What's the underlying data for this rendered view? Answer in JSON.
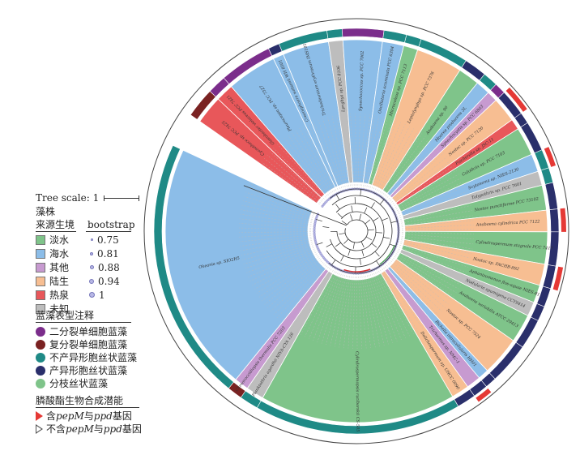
{
  "scale": {
    "label": "Tree scale: 1"
  },
  "strain_source": {
    "title_line1": "藻株",
    "title_line2": "来源生境",
    "items": [
      {
        "label": "淡水",
        "color": "#7fc48a"
      },
      {
        "label": "海水",
        "color": "#8cbde8"
      },
      {
        "label": "其他",
        "color": "#c79ad0"
      },
      {
        "label": "陆生",
        "color": "#f7be92"
      },
      {
        "label": "热泉",
        "color": "#e8575a"
      },
      {
        "label": "未知",
        "color": "#bdbdbd"
      }
    ]
  },
  "bootstrap": {
    "title": "bootstrap",
    "items": [
      {
        "label": "0.75"
      },
      {
        "label": "0.81"
      },
      {
        "label": "0.88"
      },
      {
        "label": "0.94"
      },
      {
        "label": "1"
      }
    ]
  },
  "phenotype": {
    "title": "蓝藻表型注释",
    "items": [
      {
        "label": "二分裂单细胞蓝藻",
        "color": "#7b2d8b"
      },
      {
        "label": "复分裂单细胞蓝藻",
        "color": "#7a2222"
      },
      {
        "label": "不产异形胞丝状蓝藻",
        "color": "#1f8a86"
      },
      {
        "label": "产异形胞丝状蓝藻",
        "color": "#2a2f6b"
      },
      {
        "label": "分枝丝状蓝藻",
        "color": "#7fc48a"
      }
    ]
  },
  "gene_potential": {
    "title": "膦酸酯生物合成潜能",
    "items": [
      {
        "prefix": "含",
        "gene1": "pepM",
        "middle": "与",
        "gene2": "ppd",
        "suffix": "基因",
        "color": "#e53935",
        "filled": true
      },
      {
        "prefix": "不含",
        "gene1": "pepM",
        "middle": "与",
        "gene2": "ppd",
        "suffix": "基因",
        "color": "#555555",
        "filled": false
      }
    ]
  },
  "tree": {
    "sectors": [
      {
        "source": "热泉",
        "phenotype": "复分裂单细胞蓝藻",
        "gene": false
      },
      {
        "source": "热泉",
        "phenotype": "二分裂单细胞蓝藻",
        "gene": false
      },
      {
        "source": "海水",
        "phenotype": "二分裂单细胞蓝藻",
        "gene": false
      },
      {
        "source": "海水",
        "phenotype": "产异形胞丝状蓝藻",
        "gene": false
      },
      {
        "source": "海水",
        "phenotype": "不产异形胞丝状蓝藻",
        "gene": false
      },
      {
        "source": "未知",
        "phenotype": "不产异形胞丝状蓝藻",
        "gene": false
      },
      {
        "source": "海水",
        "phenotype": "二分裂单细胞蓝藻",
        "gene": false
      },
      {
        "source": "海水",
        "phenotype": "不产异形胞丝状蓝藻",
        "gene": false
      },
      {
        "source": "淡水",
        "phenotype": "不产异形胞丝状蓝藻",
        "gene": false
      },
      {
        "source": "陆生",
        "phenotype": "不产异形胞丝状蓝藻",
        "gene": false
      },
      {
        "source": "淡水",
        "phenotype": "产异形胞丝状蓝藻",
        "gene": false
      },
      {
        "source": "海水",
        "phenotype": "不产异形胞丝状蓝藻",
        "gene": false
      },
      {
        "source": "其他",
        "phenotype": "二分裂单细胞蓝藻",
        "gene": false
      },
      {
        "source": "陆生",
        "phenotype": "产异形胞丝状蓝藻",
        "gene": true
      },
      {
        "source": "热泉",
        "phenotype": "产异形胞丝状蓝藻",
        "gene": false
      },
      {
        "source": "淡水",
        "phenotype": "产异形胞丝状蓝藻",
        "gene": false
      },
      {
        "source": "海水",
        "phenotype": "不产异形胞丝状蓝藻",
        "gene": true
      },
      {
        "source": "未知",
        "phenotype": "不产异形胞丝状蓝藻",
        "gene": false
      },
      {
        "source": "淡水",
        "phenotype": "产异形胞丝状蓝藻",
        "gene": false
      },
      {
        "source": "陆生",
        "phenotype": "产异形胞丝状蓝藻",
        "gene": true
      },
      {
        "source": "淡水",
        "phenotype": "产异形胞丝状蓝藻",
        "gene": false
      },
      {
        "source": "陆生",
        "phenotype": "产异形胞丝状蓝藻",
        "gene": true
      },
      {
        "source": "淡水",
        "phenotype": "产异形胞丝状蓝藻",
        "gene": false
      },
      {
        "source": "未知",
        "phenotype": "产异形胞丝状蓝藻",
        "gene": false
      },
      {
        "source": "淡水",
        "phenotype": "产异形胞丝状蓝藻",
        "gene": false
      },
      {
        "source": "陆生",
        "phenotype": "产异形胞丝状蓝藻",
        "gene": false
      },
      {
        "source": "海水",
        "phenotype": "产异形胞丝状蓝藻",
        "gene": false
      },
      {
        "source": "其他",
        "phenotype": "产异形胞丝状蓝藻",
        "gene": true
      },
      {
        "source": "陆生",
        "phenotype": "产异形胞丝状蓝藻",
        "gene": false
      },
      {
        "source": "淡水",
        "phenotype": "不产异形胞丝状蓝藻",
        "gene": false
      },
      {
        "source": "未知",
        "phenotype": "不产异形胞丝状蓝藻",
        "gene": false
      },
      {
        "source": "其他",
        "phenotype": "复分裂单细胞蓝藻",
        "gene": false
      },
      {
        "source": "海水",
        "phenotype": "不产异形胞丝状蓝藻",
        "gene": false
      }
    ],
    "sector_weights": [
      1.6,
      1.0,
      2.8,
      0.6,
      2.6,
      0.8,
      2.2,
      1.2,
      0.8,
      2.6,
      1.2,
      0.8,
      0.6,
      1.4,
      0.6,
      1.6,
      1.0,
      0.8,
      1.4,
      1.2,
      1.8,
      1.2,
      1.0,
      0.8,
      1.6,
      2.2,
      0.6,
      0.8,
      1.0,
      11.0,
      1.0,
      0.8,
      14.0
    ],
    "tip_labels": [
      "Cyanothece sp. PCC 7425",
      "Gloeobacter violaceus PCC 7421",
      "Pleurocapsa sp. PCC 7327",
      "Crocosphaera watsonii WH 8501",
      "Trichodesmium erythraeum IMS101",
      "Lyngbya sp. PCC 8106",
      "Synechococcus sp. PCC 7002",
      "Oscillatoria acuminata PCC 6304",
      "Microcoleus sp. PCC 7113",
      "Leptolyngbya sp. PCC 7376",
      "Anabaena sp. 90",
      "Moorea producens 3L",
      "Synechocystis sp. PCC 6803",
      "Nostoc sp. PCC 7120",
      "Fischerella sp. JSC-11",
      "Calothrix sp. PCC 7103",
      "Scytonema sp. NIES-2130",
      "Tolypothrix sp. PCC 7601",
      "Nostoc punctiforme PCC 73102",
      "Anabaena cylindrica PCC 7122",
      "Cylindrospermum stagnale PCC 7417",
      "Nostoc sp. FACHB-892",
      "Aphanizomenon flos-aquae NIES-81",
      "Nodularia spumigena CCY9414",
      "Anabaena variabilis ATCC 29413",
      "Nostoc sp. PCC 7524",
      "Richelia intracellularis HH01",
      "Trichormus sp. NMC-1",
      "Dolichospermum sp. UHCC 0090",
      "Cylindrospermopsis raciborskii CS-505",
      "Planktothrix agardhii NIVA-CYA 126",
      "Chroococcidiopsis thermalis PCC 7203",
      "Okeania sp. SIO2H5"
    ]
  }
}
